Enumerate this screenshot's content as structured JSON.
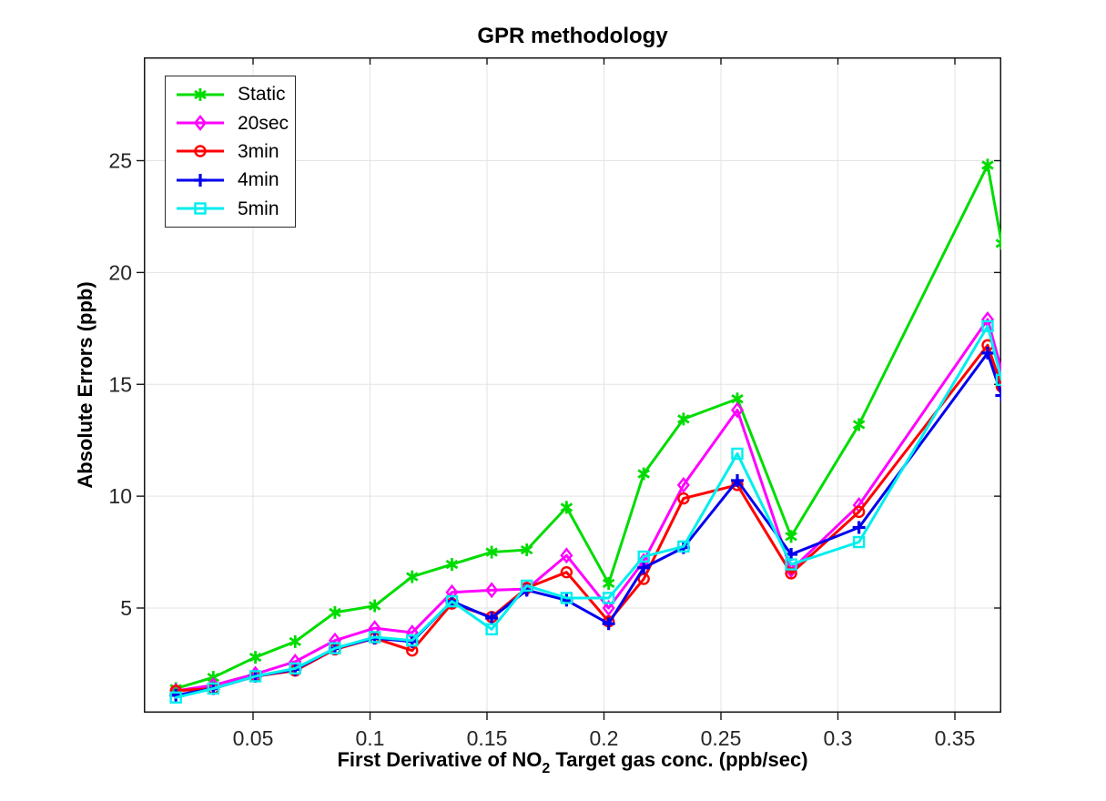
{
  "figure": {
    "title": "GPR methodology",
    "xlabel_pre": "First Derivative of NO",
    "xlabel_sub": "2",
    "xlabel_post": " Target gas conc. (ppb/sec)",
    "ylabel": "Absolute Errors (ppb)"
  },
  "chart_data": {
    "type": "line",
    "title": "GPR methodology",
    "xlabel": "First Derivative of NO_2 Target gas conc. (ppb/sec)",
    "ylabel": "Absolute Errors (ppb)",
    "xlim": [
      0.003,
      0.37
    ],
    "ylim": [
      0.4,
      29.6
    ],
    "grid": true,
    "legend_position": "top-left",
    "x_ticks": {
      "values": [
        0.05,
        0.1,
        0.15,
        0.2,
        0.25,
        0.3,
        0.35
      ],
      "labels": [
        "0.05",
        "0.1",
        "0.15",
        "0.2",
        "0.25",
        "0.3",
        "0.35"
      ]
    },
    "y_ticks": {
      "values": [
        5,
        10,
        15,
        20,
        25
      ],
      "labels": [
        "5",
        "10",
        "15",
        "20",
        "25"
      ]
    },
    "x": [
      0.017,
      0.033,
      0.051,
      0.068,
      0.085,
      0.102,
      0.118,
      0.135,
      0.152,
      0.167,
      0.184,
      0.202,
      0.217,
      0.234,
      0.257,
      0.28,
      0.309,
      0.364,
      0.37
    ],
    "series": [
      {
        "name": "Static",
        "color": "#00dc00",
        "marker": "asterisk",
        "values": [
          1.4,
          1.9,
          2.8,
          3.5,
          4.8,
          5.1,
          6.4,
          6.95,
          7.5,
          7.6,
          9.5,
          6.1,
          11.0,
          13.45,
          14.35,
          8.2,
          13.2,
          24.8,
          21.3
        ]
      },
      {
        "name": "20sec",
        "color": "#ff00ff",
        "marker": "diamond",
        "values": [
          1.3,
          1.55,
          2.05,
          2.6,
          3.55,
          4.1,
          3.9,
          5.7,
          5.8,
          5.85,
          7.35,
          5.0,
          7.1,
          10.5,
          13.85,
          6.7,
          9.6,
          17.9,
          15.6
        ]
      },
      {
        "name": "3min",
        "color": "#ff0000",
        "marker": "circle",
        "values": [
          1.3,
          1.4,
          1.95,
          2.2,
          3.15,
          3.65,
          3.1,
          5.2,
          4.6,
          5.9,
          6.6,
          4.4,
          6.3,
          9.9,
          10.5,
          6.55,
          9.3,
          16.75,
          14.9
        ]
      },
      {
        "name": "4min",
        "color": "#0000ee",
        "marker": "plus",
        "values": [
          1.1,
          1.4,
          1.95,
          2.25,
          3.2,
          3.65,
          3.5,
          5.3,
          4.55,
          5.8,
          5.35,
          4.3,
          6.8,
          7.7,
          10.7,
          7.4,
          8.6,
          16.4,
          14.5
        ]
      },
      {
        "name": "5min",
        "color": "#00eeee",
        "marker": "square",
        "values": [
          1.0,
          1.4,
          1.95,
          2.3,
          3.2,
          3.7,
          3.55,
          5.3,
          4.05,
          6.0,
          5.45,
          5.45,
          7.3,
          7.75,
          11.9,
          6.95,
          7.95,
          17.6,
          15.2
        ]
      }
    ]
  },
  "style": {
    "grid_color": "#e3e3e3",
    "axis_color": "#151515",
    "tick_label_color": "#262626"
  }
}
